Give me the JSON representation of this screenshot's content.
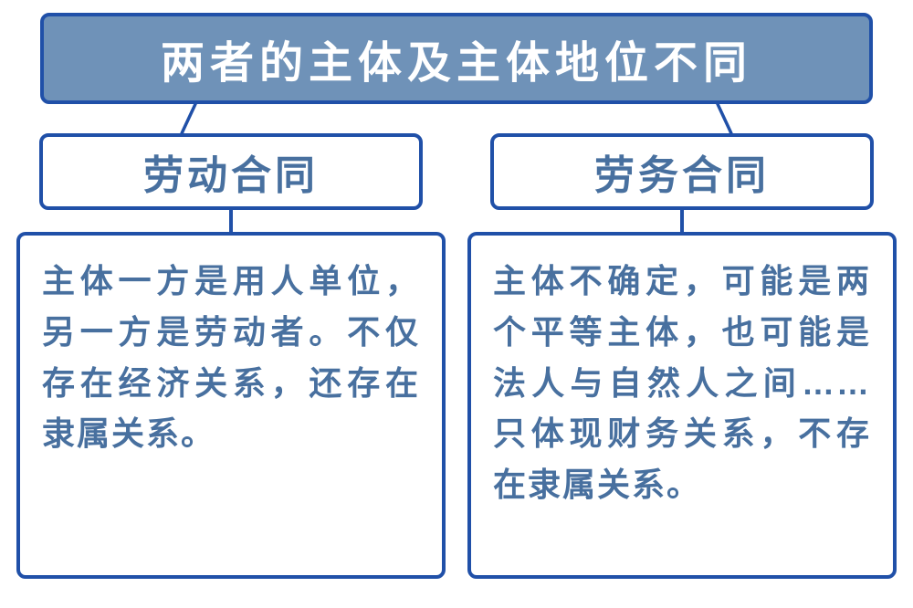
{
  "colors": {
    "box_fill": "#6f92b8",
    "border": "#2050a8",
    "title_text": "#ffffff",
    "subtitle_text": "#48709f",
    "desc_text": "#48709f",
    "background": "#ffffff"
  },
  "diagram": {
    "type": "tree",
    "title": "两者的主体及主体地位不同",
    "title_fontsize": 48,
    "subtitle_fontsize": 44,
    "desc_fontsize": 36,
    "border_width": 4,
    "border_radius": 10,
    "left": {
      "subtitle": "劳动合同",
      "description": "主体一方是用人单位，另一方是劳动者。不仅存在经济关系，还存在隶属关系。"
    },
    "right": {
      "subtitle": "劳务合同",
      "description": "主体不确定，可能是两个平等主体，也可能是法人与自然人之间……只体现财务关系，不存在隶属关系。"
    }
  }
}
